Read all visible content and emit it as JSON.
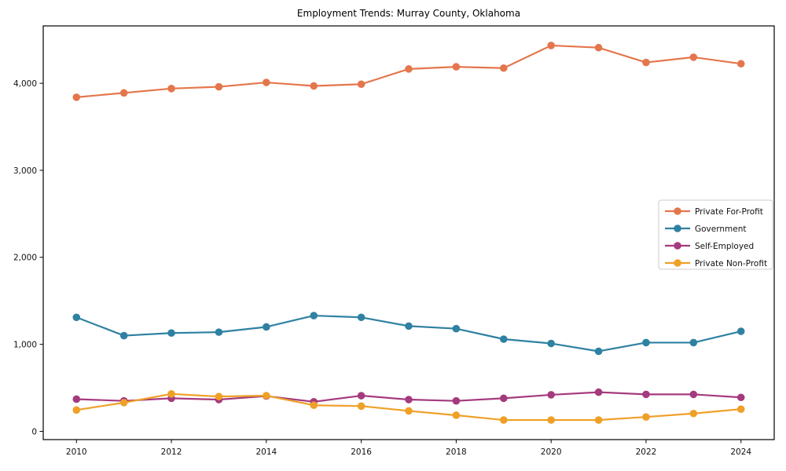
{
  "chart_data": {
    "type": "line",
    "title": "Employment Trends: Murray County, Oklahoma",
    "xlabel": "",
    "ylabel": "",
    "x": [
      2010,
      2011,
      2012,
      2013,
      2014,
      2015,
      2016,
      2017,
      2018,
      2019,
      2020,
      2021,
      2022,
      2023,
      2024
    ],
    "x_ticks": [
      2010,
      2012,
      2014,
      2016,
      2018,
      2020,
      2022,
      2024
    ],
    "x_tick_labels": [
      "2010",
      "2012",
      "2014",
      "2016",
      "2018",
      "2020",
      "2022",
      "2024"
    ],
    "y_ticks": [
      0,
      1000,
      2000,
      3000,
      4000
    ],
    "y_tick_labels": [
      "0",
      "1,000",
      "2,000",
      "3,000",
      "4,000"
    ],
    "xlim": [
      2009.3,
      2024.7
    ],
    "ylim": [
      -95,
      4660
    ],
    "grid": false,
    "legend_position": "center-right",
    "legend_border_color": "#cccccc",
    "background_color": "#ffffff",
    "axis_color": "#000000",
    "marker": "circle",
    "series": [
      {
        "name": "Private For-Profit",
        "color": "#E4764C",
        "values": [
          3840,
          3890,
          3940,
          3960,
          4010,
          3970,
          3990,
          4165,
          4190,
          4175,
          4435,
          4410,
          4240,
          4300,
          4225
        ]
      },
      {
        "name": "Government",
        "color": "#2F81A2",
        "values": [
          1310,
          1100,
          1130,
          1140,
          1200,
          1330,
          1310,
          1210,
          1180,
          1060,
          1010,
          920,
          1020,
          1020,
          1150
        ]
      },
      {
        "name": "Self-Employed",
        "color": "#A53A7E",
        "values": [
          370,
          350,
          380,
          365,
          405,
          340,
          410,
          365,
          350,
          380,
          420,
          450,
          425,
          425,
          390
        ]
      },
      {
        "name": "Private Non-Profit",
        "color": "#EFA027",
        "values": [
          245,
          330,
          430,
          400,
          410,
          300,
          290,
          235,
          185,
          130,
          130,
          130,
          165,
          205,
          255
        ]
      }
    ]
  }
}
